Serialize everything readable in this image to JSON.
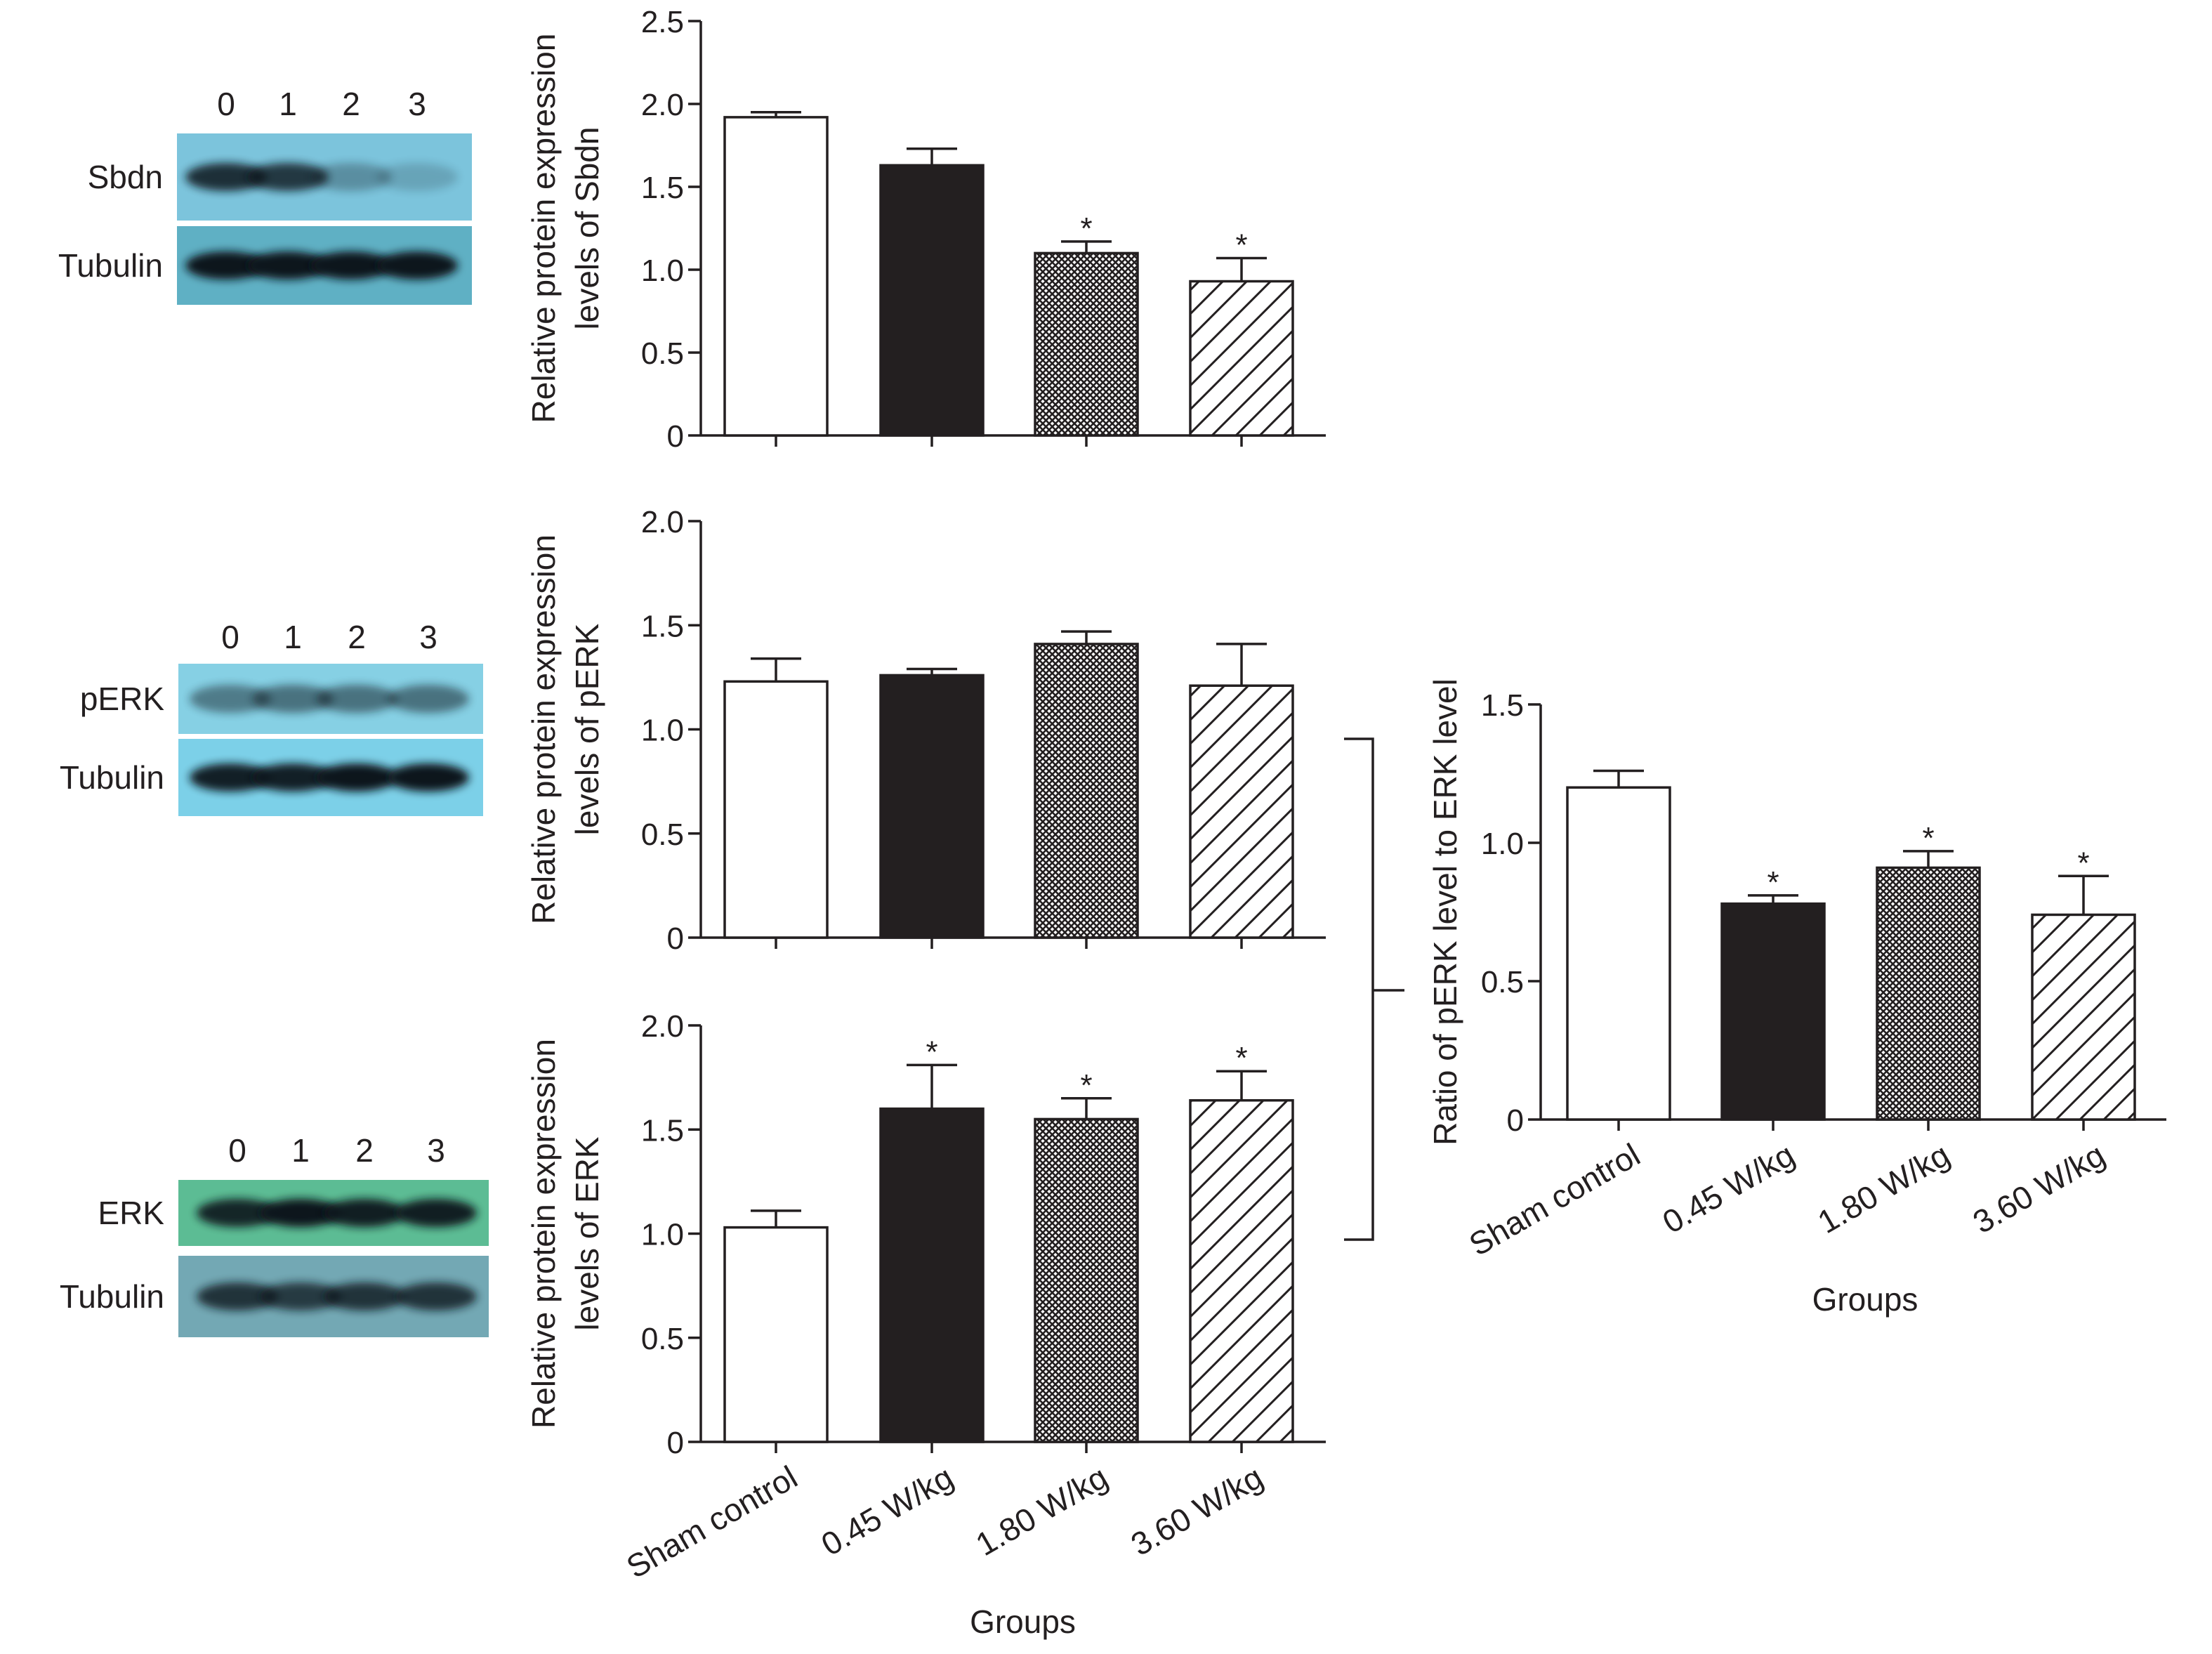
{
  "blots": [
    {
      "lanes": [
        "0",
        "1",
        "2",
        "3"
      ],
      "rows": [
        {
          "label": "Sbdn",
          "bg": "#7cc4dc",
          "intensity": [
            0.85,
            0.8,
            0.3,
            0.18
          ]
        },
        {
          "label": "Tubulin",
          "bg": "#5fb0c4",
          "intensity": [
            1,
            1,
            1,
            1
          ]
        }
      ]
    },
    {
      "lanes": [
        "0",
        "1",
        "2",
        "3"
      ],
      "rows": [
        {
          "label": "pERK",
          "bg": "#86d0e4",
          "intensity": [
            0.45,
            0.5,
            0.5,
            0.5
          ]
        },
        {
          "label": "Tubulin",
          "bg": "#7cd0e8",
          "intensity": [
            0.95,
            0.95,
            1,
            1
          ]
        }
      ]
    },
    {
      "lanes": [
        "0",
        "1",
        "2",
        "3"
      ],
      "rows": [
        {
          "label": "ERK",
          "bg": "#5cbc94",
          "intensity": [
            0.9,
            1,
            0.95,
            0.95
          ]
        },
        {
          "label": "Tubulin",
          "bg": "#73a8b4",
          "intensity": [
            0.8,
            0.75,
            0.8,
            0.8
          ]
        }
      ]
    }
  ],
  "group_patterns": [
    "white",
    "black",
    "crosshatch",
    "diagonal"
  ],
  "chart_data": [
    {
      "type": "bar",
      "categories": [
        "Sham control",
        "0.45 W/kg",
        "1.80 W/kg",
        "3.60 W/kg"
      ],
      "values": [
        1.92,
        1.63,
        1.1,
        0.93
      ],
      "errors": [
        0.03,
        0.1,
        0.07,
        0.14
      ],
      "significance": [
        "",
        "",
        "*",
        "*"
      ],
      "ylabel_lines": [
        "Relative protein expression",
        "levels of Sbdn"
      ],
      "xlabel": "",
      "ylim": [
        0,
        2.5
      ],
      "yticks": [
        "0",
        "0.5",
        "1.0",
        "1.5",
        "2.0",
        "2.5"
      ],
      "show_category_labels": false
    },
    {
      "type": "bar",
      "categories": [
        "Sham control",
        "0.45 W/kg",
        "1.80 W/kg",
        "3.60 W/kg"
      ],
      "values": [
        1.23,
        1.26,
        1.41,
        1.21
      ],
      "errors": [
        0.11,
        0.03,
        0.06,
        0.2
      ],
      "significance": [
        "",
        "",
        "",
        ""
      ],
      "ylabel_lines": [
        "Relative protein expression",
        "levels of pERK"
      ],
      "xlabel": "",
      "ylim": [
        0,
        2.0
      ],
      "yticks": [
        "0",
        "0.5",
        "1.0",
        "1.5",
        "2.0"
      ],
      "show_category_labels": false
    },
    {
      "type": "bar",
      "categories": [
        "Sham control",
        "0.45 W/kg",
        "1.80 W/kg",
        "3.60 W/kg"
      ],
      "values": [
        1.03,
        1.6,
        1.55,
        1.64
      ],
      "errors": [
        0.08,
        0.21,
        0.1,
        0.14
      ],
      "significance": [
        "",
        "*",
        "*",
        "*"
      ],
      "ylabel_lines": [
        "Relative protein expression",
        "levels of ERK"
      ],
      "xlabel": "Groups",
      "ylim": [
        0,
        2.0
      ],
      "yticks": [
        "0",
        "0.5",
        "1.0",
        "1.5",
        "2.0"
      ],
      "show_category_labels": true
    },
    {
      "type": "bar",
      "categories": [
        "Sham control",
        "0.45 W/kg",
        "1.80 W/kg",
        "3.60 W/kg"
      ],
      "values": [
        1.2,
        0.78,
        0.91,
        0.74
      ],
      "errors": [
        0.06,
        0.03,
        0.06,
        0.14
      ],
      "significance": [
        "",
        "*",
        "*",
        "*"
      ],
      "ylabel_lines": [
        "Ratio of pERK level to ERK level"
      ],
      "xlabel": "Groups",
      "ylim": [
        0,
        1.5
      ],
      "yticks": [
        "0",
        "0.5",
        "1.0",
        "1.5"
      ],
      "show_category_labels": true
    }
  ]
}
